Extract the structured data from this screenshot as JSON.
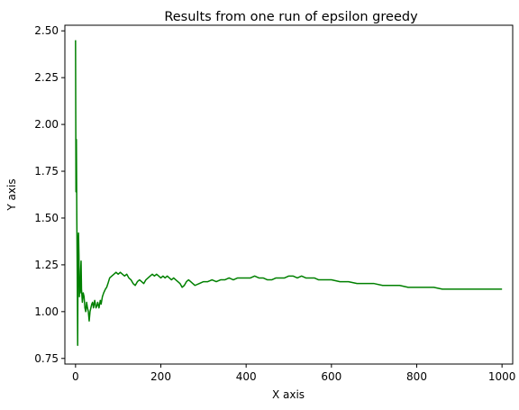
{
  "chart_data": {
    "type": "line",
    "title": "Results from one run of epsilon greedy",
    "xlabel": "X axis",
    "ylabel": "Y axis",
    "xlim": [
      -25,
      1025
    ],
    "ylim": [
      0.72,
      2.53
    ],
    "grid": false,
    "x_ticks": [
      0,
      200,
      400,
      600,
      800,
      1000
    ],
    "x_tick_labels": [
      "0",
      "200",
      "400",
      "600",
      "800",
      "1000"
    ],
    "y_ticks": [
      0.75,
      1.0,
      1.25,
      1.5,
      1.75,
      2.0,
      2.25,
      2.5
    ],
    "y_tick_labels": [
      "0.75",
      "1.00",
      "1.25",
      "1.50",
      "1.75",
      "2.00",
      "2.25",
      "2.50"
    ],
    "series": [
      {
        "color": "#008000",
        "x": [
          0,
          1,
          2,
          3,
          4,
          5,
          6,
          7,
          8,
          9,
          10,
          11,
          12,
          13,
          14,
          16,
          18,
          20,
          22,
          24,
          26,
          28,
          30,
          32,
          34,
          36,
          38,
          40,
          42,
          45,
          48,
          50,
          52,
          55,
          58,
          60,
          63,
          66,
          70,
          73,
          76,
          80,
          85,
          90,
          95,
          100,
          105,
          110,
          115,
          120,
          125,
          130,
          135,
          140,
          145,
          150,
          155,
          160,
          165,
          170,
          175,
          180,
          185,
          190,
          195,
          200,
          205,
          210,
          215,
          220,
          225,
          230,
          235,
          240,
          245,
          250,
          255,
          260,
          265,
          270,
          275,
          280,
          290,
          300,
          310,
          320,
          330,
          340,
          350,
          360,
          370,
          380,
          390,
          400,
          410,
          420,
          430,
          440,
          450,
          460,
          470,
          480,
          490,
          500,
          510,
          520,
          530,
          540,
          550,
          560,
          570,
          580,
          590,
          600,
          620,
          640,
          660,
          680,
          700,
          720,
          740,
          760,
          780,
          800,
          820,
          840,
          860,
          880,
          900,
          920,
          940,
          960,
          980,
          1000
        ],
        "y": [
          2.45,
          1.64,
          1.92,
          1.5,
          1.2,
          0.82,
          1.38,
          1.42,
          1.3,
          1.08,
          1.15,
          1.1,
          1.22,
          1.27,
          1.12,
          1.05,
          1.1,
          1.08,
          1.02,
          1.0,
          1.05,
          1.02,
          1.0,
          0.95,
          1.0,
          1.02,
          1.04,
          1.05,
          1.02,
          1.06,
          1.02,
          1.03,
          1.05,
          1.02,
          1.06,
          1.04,
          1.08,
          1.1,
          1.12,
          1.13,
          1.15,
          1.18,
          1.19,
          1.2,
          1.21,
          1.2,
          1.21,
          1.2,
          1.19,
          1.2,
          1.18,
          1.17,
          1.15,
          1.14,
          1.16,
          1.17,
          1.16,
          1.15,
          1.17,
          1.18,
          1.19,
          1.2,
          1.19,
          1.2,
          1.19,
          1.18,
          1.19,
          1.18,
          1.19,
          1.18,
          1.17,
          1.18,
          1.17,
          1.16,
          1.15,
          1.13,
          1.14,
          1.16,
          1.17,
          1.16,
          1.15,
          1.14,
          1.15,
          1.16,
          1.16,
          1.17,
          1.16,
          1.17,
          1.17,
          1.18,
          1.17,
          1.18,
          1.18,
          1.18,
          1.18,
          1.19,
          1.18,
          1.18,
          1.17,
          1.17,
          1.18,
          1.18,
          1.18,
          1.19,
          1.19,
          1.18,
          1.19,
          1.18,
          1.18,
          1.18,
          1.17,
          1.17,
          1.17,
          1.17,
          1.16,
          1.16,
          1.15,
          1.15,
          1.15,
          1.14,
          1.14,
          1.14,
          1.13,
          1.13,
          1.13,
          1.13,
          1.12,
          1.12,
          1.12,
          1.12,
          1.12,
          1.12,
          1.12,
          1.12
        ]
      }
    ]
  }
}
